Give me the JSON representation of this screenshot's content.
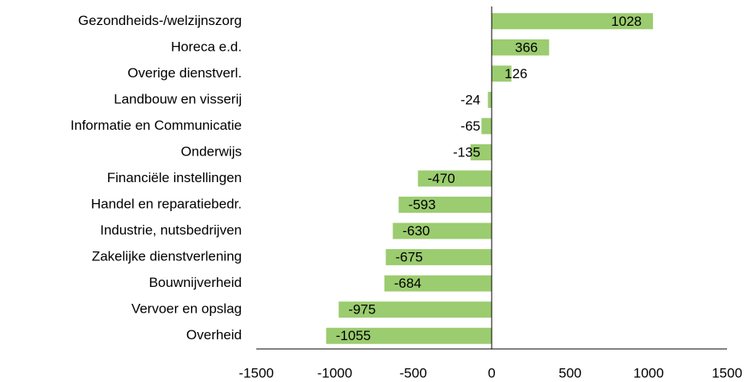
{
  "chart_data": {
    "type": "barh",
    "categories": [
      "Gezondheids-/welzijnszorg",
      "Horeca e.d.",
      "Overige dienstverl.",
      "Landbouw en visserij",
      "Informatie en Communicatie",
      "Onderwijs",
      "Financiële instellingen",
      "Handel en reparatiebedr.",
      "Industrie, nutsbedrijven",
      "Zakelijke dienstverlening",
      "Bouwnijverheid",
      "Vervoer en opslag",
      "Overheid"
    ],
    "values": [
      1028,
      366,
      126,
      -24,
      -65,
      -135,
      -470,
      -593,
      -630,
      -675,
      -684,
      -975,
      -1055
    ],
    "color": "#9bcc6f",
    "xlim": [
      -1500,
      1500
    ],
    "xticks": [
      -1500,
      -1000,
      -500,
      0,
      500,
      1000,
      1500
    ],
    "grid": false
  }
}
